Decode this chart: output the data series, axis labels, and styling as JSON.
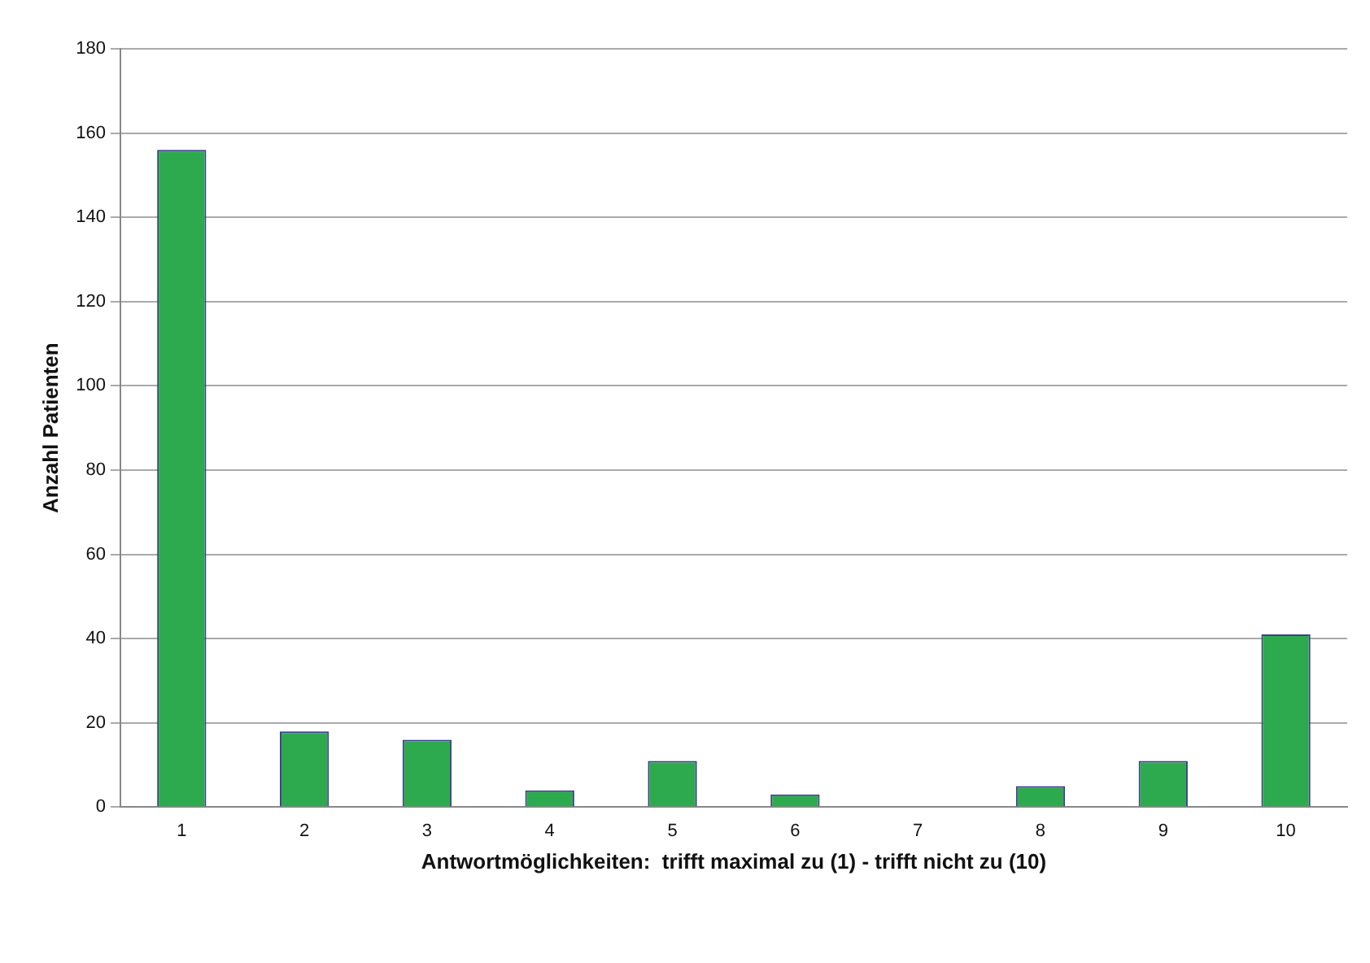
{
  "chart_data": {
    "type": "bar",
    "xlabel": "Antwortmöglichkeiten:  trifft maximal zu (1) - trifft nicht zu (10)",
    "ylabel": "Anzahl Patienten",
    "categories": [
      "1",
      "2",
      "3",
      "4",
      "5",
      "6",
      "7",
      "8",
      "9",
      "10"
    ],
    "values": [
      156,
      18,
      16,
      4,
      11,
      3,
      0,
      5,
      11,
      41
    ],
    "color": "#2eaa4e",
    "ylim": [
      0,
      180
    ],
    "yticks": [
      0,
      20,
      40,
      60,
      80,
      100,
      120,
      140,
      160,
      180
    ],
    "grid": "y",
    "legend": false
  }
}
